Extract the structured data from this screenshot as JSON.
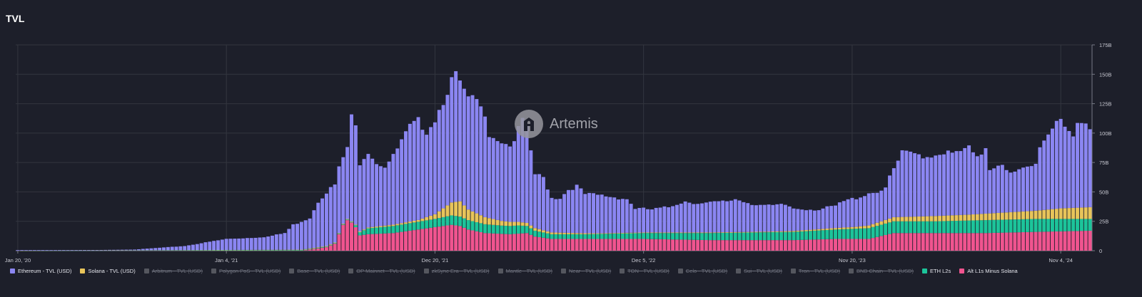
{
  "title": "TVL",
  "watermark": {
    "text": "Artemis",
    "icon": "artemis-logo-icon"
  },
  "colors": {
    "background": "#1d1f2a",
    "grid": "#33363f",
    "axis_text": "#c9cad3",
    "ethereum": "#8b86f2",
    "solana": "#e8c45a",
    "eth_l2s": "#1cc49a",
    "alt_l1s": "#f0548f",
    "disabled": "#55575f"
  },
  "legend": [
    {
      "label": "Ethereum - TVL (USD)",
      "color": "#8b86f2",
      "enabled": true
    },
    {
      "label": "Solana - TVL (USD)",
      "color": "#e8c45a",
      "enabled": true
    },
    {
      "label": "Arbitrum - TVL (USD)",
      "color": "#55575f",
      "enabled": false
    },
    {
      "label": "Polygon PoS - TVL (USD)",
      "color": "#55575f",
      "enabled": false
    },
    {
      "label": "Base - TVL (USD)",
      "color": "#55575f",
      "enabled": false
    },
    {
      "label": "OP Mainnet - TVL (USD)",
      "color": "#55575f",
      "enabled": false
    },
    {
      "label": "zkSync Era - TVL (USD)",
      "color": "#55575f",
      "enabled": false
    },
    {
      "label": "Mantle - TVL (USD)",
      "color": "#55575f",
      "enabled": false
    },
    {
      "label": "Near - TVL (USD)",
      "color": "#55575f",
      "enabled": false
    },
    {
      "label": "TON - TVL (USD)",
      "color": "#55575f",
      "enabled": false
    },
    {
      "label": "Celo - TVL (USD)",
      "color": "#55575f",
      "enabled": false
    },
    {
      "label": "Sui - TVL (USD)",
      "color": "#55575f",
      "enabled": false
    },
    {
      "label": "Tron - TVL (USD)",
      "color": "#55575f",
      "enabled": false
    },
    {
      "label": "BNB Chain - TVL (USD)",
      "color": "#55575f",
      "enabled": false
    },
    {
      "label": "ETH L2s",
      "color": "#1cc49a",
      "enabled": true
    },
    {
      "label": "Alt L1s Minus Solana",
      "color": "#f0548f",
      "enabled": true
    }
  ],
  "chart_data": {
    "type": "bar",
    "stacked": true,
    "title": "TVL",
    "x_tick_labels": [
      "Jan 20, '20",
      "Jan 4, '21",
      "Dec 20, '21",
      "Dec 5, '22",
      "Nov 20, '23",
      "Nov 4, '24"
    ],
    "y_tick_labels": [
      "0",
      "25B",
      "50B",
      "75B",
      "100B",
      "125B",
      "150B",
      "175B"
    ],
    "ylim": [
      0,
      175
    ],
    "y_unit": "B USD",
    "grid": true,
    "legend_position": "bottom",
    "series_order": [
      "Alt L1s Minus Solana",
      "ETH L2s",
      "Solana - TVL (USD)",
      "Ethereum - TVL (USD)"
    ],
    "anchors_note": "weekly bars, Jan 2020 - Jan 2025; values below are stacked totals at key dates in billions USD",
    "total_tvl": [
      [
        0,
        0.5
      ],
      [
        20,
        0.6
      ],
      [
        28,
        1.0
      ],
      [
        40,
        4
      ],
      [
        50,
        10
      ],
      [
        56,
        11
      ],
      [
        60,
        12
      ],
      [
        64,
        15
      ],
      [
        66,
        22
      ],
      [
        70,
        28
      ],
      [
        72,
        42
      ],
      [
        74,
        50
      ],
      [
        76,
        56
      ],
      [
        77,
        70
      ],
      [
        79,
        88
      ],
      [
        80,
        113
      ],
      [
        81,
        105
      ],
      [
        82,
        75
      ],
      [
        84,
        85
      ],
      [
        86,
        75
      ],
      [
        88,
        72
      ],
      [
        90,
        80
      ],
      [
        92,
        93
      ],
      [
        94,
        105
      ],
      [
        96,
        110
      ],
      [
        98,
        102
      ],
      [
        100,
        112
      ],
      [
        102,
        128
      ],
      [
        104,
        145
      ],
      [
        105,
        148
      ],
      [
        106,
        143
      ],
      [
        107,
        135
      ],
      [
        108,
        128
      ],
      [
        110,
        128
      ],
      [
        111,
        120
      ],
      [
        112,
        118
      ],
      [
        113,
        100
      ],
      [
        115,
        95
      ],
      [
        117,
        91
      ],
      [
        119,
        90
      ],
      [
        120,
        105
      ],
      [
        121,
        110
      ],
      [
        122,
        103
      ],
      [
        123,
        85
      ],
      [
        124,
        65
      ],
      [
        126,
        62
      ],
      [
        128,
        45
      ],
      [
        130,
        45
      ],
      [
        132,
        52
      ],
      [
        134,
        55
      ],
      [
        136,
        48
      ],
      [
        140,
        47
      ],
      [
        144,
        45
      ],
      [
        146,
        44
      ],
      [
        148,
        36
      ],
      [
        152,
        35
      ],
      [
        156,
        37
      ],
      [
        158,
        40
      ],
      [
        160,
        42
      ],
      [
        164,
        40
      ],
      [
        170,
        42
      ],
      [
        172,
        44
      ],
      [
        176,
        40
      ],
      [
        180,
        38
      ],
      [
        184,
        39
      ],
      [
        186,
        36
      ],
      [
        192,
        35
      ],
      [
        196,
        38
      ],
      [
        198,
        42
      ],
      [
        202,
        46
      ],
      [
        204,
        49
      ],
      [
        208,
        52
      ],
      [
        209,
        63
      ],
      [
        211,
        76
      ],
      [
        212,
        83
      ],
      [
        216,
        82
      ],
      [
        218,
        80
      ],
      [
        222,
        84
      ],
      [
        224,
        82
      ],
      [
        228,
        87
      ],
      [
        230,
        78
      ],
      [
        232,
        88
      ],
      [
        233,
        70
      ],
      [
        236,
        75
      ],
      [
        238,
        65
      ],
      [
        244,
        73
      ],
      [
        245,
        90
      ],
      [
        247,
        99
      ],
      [
        249,
        112
      ],
      [
        250,
        113
      ],
      [
        252,
        103
      ],
      [
        253,
        97
      ],
      [
        254,
        105
      ],
      [
        256,
        105
      ],
      [
        257,
        102
      ]
    ],
    "solana": [
      [
        0,
        0
      ],
      [
        80,
        0.5
      ],
      [
        96,
        1.5
      ],
      [
        100,
        4
      ],
      [
        104,
        11
      ],
      [
        106,
        13
      ],
      [
        108,
        9
      ],
      [
        112,
        6
      ],
      [
        116,
        4
      ],
      [
        120,
        3
      ],
      [
        128,
        1.5
      ],
      [
        140,
        0.5
      ],
      [
        180,
        0.5
      ],
      [
        200,
        1.5
      ],
      [
        210,
        3.5
      ],
      [
        220,
        4.5
      ],
      [
        228,
        5
      ],
      [
        236,
        6
      ],
      [
        244,
        7
      ],
      [
        250,
        9
      ],
      [
        257,
        10
      ]
    ],
    "eth_l2s": [
      [
        0,
        0
      ],
      [
        80,
        0.5
      ],
      [
        84,
        5
      ],
      [
        90,
        6
      ],
      [
        100,
        7
      ],
      [
        104,
        8
      ],
      [
        108,
        8
      ],
      [
        116,
        7
      ],
      [
        120,
        7
      ],
      [
        124,
        5
      ],
      [
        128,
        4
      ],
      [
        136,
        4
      ],
      [
        150,
        5
      ],
      [
        166,
        6
      ],
      [
        186,
        7
      ],
      [
        196,
        8
      ],
      [
        210,
        10
      ],
      [
        220,
        10
      ],
      [
        232,
        11
      ],
      [
        244,
        11
      ],
      [
        257,
        10
      ]
    ],
    "alt_l1s": [
      [
        0,
        0
      ],
      [
        68,
        0
      ],
      [
        70,
        1
      ],
      [
        74,
        3
      ],
      [
        76,
        6
      ],
      [
        78,
        22
      ],
      [
        79,
        26
      ],
      [
        80,
        24
      ],
      [
        81,
        20
      ],
      [
        82,
        13
      ],
      [
        84,
        14
      ],
      [
        90,
        15
      ],
      [
        96,
        18
      ],
      [
        100,
        20
      ],
      [
        104,
        22
      ],
      [
        106,
        21
      ],
      [
        108,
        18
      ],
      [
        112,
        15
      ],
      [
        118,
        14
      ],
      [
        122,
        15
      ],
      [
        124,
        12
      ],
      [
        128,
        10
      ],
      [
        136,
        10
      ],
      [
        150,
        10
      ],
      [
        166,
        9
      ],
      [
        176,
        9
      ],
      [
        186,
        9
      ],
      [
        196,
        10
      ],
      [
        204,
        10
      ],
      [
        210,
        15
      ],
      [
        220,
        15
      ],
      [
        232,
        15
      ],
      [
        244,
        16
      ],
      [
        257,
        17
      ]
    ]
  }
}
